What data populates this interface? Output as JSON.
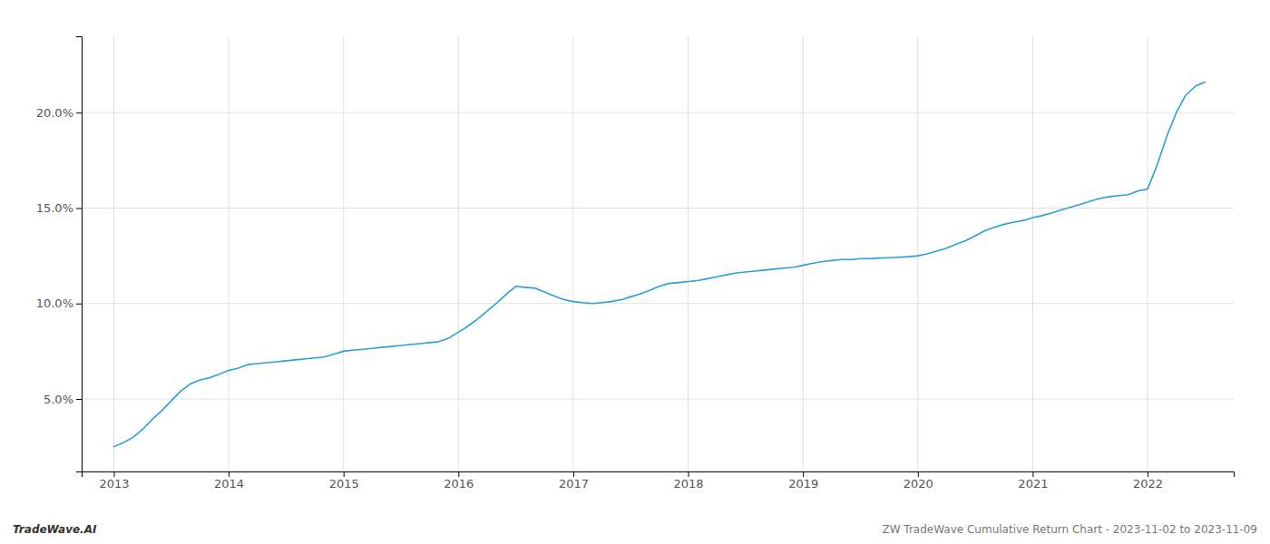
{
  "chart_data": {
    "type": "line",
    "x": [
      2013.0,
      2013.08,
      2013.17,
      2013.25,
      2013.33,
      2013.42,
      2013.5,
      2013.58,
      2013.67,
      2013.75,
      2013.83,
      2013.92,
      2014.0,
      2014.08,
      2014.17,
      2014.25,
      2014.33,
      2014.42,
      2014.5,
      2014.58,
      2014.67,
      2014.75,
      2014.83,
      2014.92,
      2015.0,
      2015.08,
      2015.17,
      2015.25,
      2015.33,
      2015.42,
      2015.5,
      2015.58,
      2015.67,
      2015.75,
      2015.83,
      2015.92,
      2016.0,
      2016.08,
      2016.17,
      2016.25,
      2016.33,
      2016.42,
      2016.5,
      2016.58,
      2016.67,
      2016.75,
      2016.83,
      2016.92,
      2017.0,
      2017.08,
      2017.17,
      2017.25,
      2017.33,
      2017.42,
      2017.5,
      2017.58,
      2017.67,
      2017.75,
      2017.83,
      2017.92,
      2018.0,
      2018.08,
      2018.17,
      2018.25,
      2018.33,
      2018.42,
      2018.5,
      2018.58,
      2018.67,
      2018.75,
      2018.83,
      2018.92,
      2019.0,
      2019.08,
      2019.17,
      2019.25,
      2019.33,
      2019.42,
      2019.5,
      2019.58,
      2019.67,
      2019.75,
      2019.83,
      2019.92,
      2020.0,
      2020.08,
      2020.17,
      2020.25,
      2020.33,
      2020.42,
      2020.5,
      2020.58,
      2020.67,
      2020.75,
      2020.83,
      2020.92,
      2021.0,
      2021.08,
      2021.17,
      2021.25,
      2021.33,
      2021.42,
      2021.5,
      2021.58,
      2021.67,
      2021.75,
      2021.83,
      2021.92,
      2022.0,
      2022.08,
      2022.17,
      2022.25,
      2022.33,
      2022.42,
      2022.5
    ],
    "values": [
      2.5,
      2.7,
      3.0,
      3.4,
      3.9,
      4.4,
      4.9,
      5.4,
      5.8,
      6.0,
      6.1,
      6.3,
      6.5,
      6.6,
      6.8,
      6.85,
      6.9,
      6.95,
      7.0,
      7.05,
      7.1,
      7.15,
      7.2,
      7.35,
      7.5,
      7.55,
      7.6,
      7.65,
      7.7,
      7.75,
      7.8,
      7.85,
      7.9,
      7.95,
      8.0,
      8.2,
      8.5,
      8.8,
      9.2,
      9.6,
      10.0,
      10.5,
      10.9,
      10.85,
      10.8,
      10.6,
      10.4,
      10.2,
      10.1,
      10.05,
      10.0,
      10.05,
      10.1,
      10.2,
      10.35,
      10.5,
      10.7,
      10.9,
      11.05,
      11.1,
      11.15,
      11.2,
      11.3,
      11.4,
      11.5,
      11.6,
      11.65,
      11.7,
      11.75,
      11.8,
      11.85,
      11.9,
      12.0,
      12.1,
      12.2,
      12.25,
      12.3,
      12.3,
      12.35,
      12.35,
      12.38,
      12.4,
      12.42,
      12.45,
      12.5,
      12.6,
      12.75,
      12.9,
      13.1,
      13.3,
      13.55,
      13.8,
      14.0,
      14.15,
      14.25,
      14.35,
      14.5,
      14.6,
      14.75,
      14.9,
      15.05,
      15.2,
      15.35,
      15.5,
      15.6,
      15.65,
      15.7,
      15.9,
      16.0,
      17.2,
      18.8,
      20.0,
      20.9,
      21.4,
      21.6
    ],
    "color": "#2b9fd8",
    "xlim": [
      2012.72,
      2022.75
    ],
    "xticks": [
      2013,
      2014,
      2015,
      2016,
      2017,
      2018,
      2019,
      2020,
      2021,
      2022
    ],
    "ylim": [
      1.2,
      24.0
    ],
    "yticks": [
      {
        "value": 5.0,
        "label": "5.0%"
      },
      {
        "value": 10.0,
        "label": "10.0%"
      },
      {
        "value": 15.0,
        "label": "15.0%"
      },
      {
        "value": 20.0,
        "label": "20.0%"
      }
    ],
    "grid": true,
    "annotations": [
      "TradeWave.AI",
      "ZW TradeWave Cumulative Return Chart - 2023-11-02 to 2023-11-09"
    ]
  }
}
